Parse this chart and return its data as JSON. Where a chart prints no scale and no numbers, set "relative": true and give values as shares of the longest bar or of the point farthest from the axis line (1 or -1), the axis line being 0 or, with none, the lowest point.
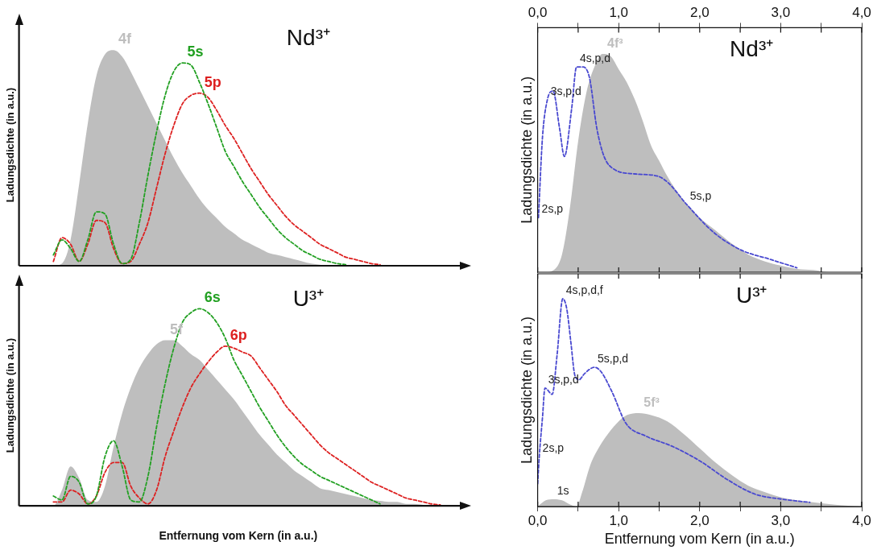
{
  "chart_data": [
    {
      "type": "area",
      "title": "Nd³⁺",
      "ylabel": "Ladungsdichte (in a.u.)",
      "relative": true,
      "categories": [
        null,
        null,
        null,
        null,
        null,
        null,
        null,
        null,
        null,
        null,
        null,
        null,
        null,
        null,
        null,
        null,
        null,
        null,
        null,
        null,
        null,
        null,
        null,
        null,
        null,
        null,
        null,
        null,
        null,
        null,
        null,
        null,
        null,
        null,
        null,
        null,
        null,
        null,
        null,
        null,
        null,
        null,
        null,
        null,
        null,
        null,
        null,
        null,
        null,
        null,
        null,
        null
      ],
      "series": [
        {
          "name": "4f",
          "color": "#bebebe",
          "values": [
            0,
            0,
            0,
            0,
            0,
            0.01,
            0.12,
            0.38,
            0.66,
            0.88,
            0.98,
            1.0,
            0.97,
            0.9,
            0.82,
            0.74,
            0.66,
            0.58,
            0.5,
            0.43,
            0.37,
            0.31,
            0.26,
            0.22,
            0.18,
            0.15,
            0.12,
            0.1,
            0.08,
            0.06,
            0.05,
            0.04,
            0.03,
            0.02,
            0.01,
            0.005,
            0,
            0,
            0,
            0,
            0,
            0,
            0,
            0,
            0,
            0,
            0,
            0,
            0,
            0,
            0,
            0
          ]
        },
        {
          "name": "5s",
          "type": "line",
          "line_style": "dashed",
          "color": "#22a022",
          "values": [
            null,
            null,
            null,
            null,
            0.05,
            0.12,
            0.08,
            0.02,
            0.12,
            0.25,
            0.24,
            0.1,
            0.01,
            0.03,
            0.2,
            0.42,
            0.62,
            0.79,
            0.9,
            0.94,
            0.93,
            0.85,
            0.75,
            0.64,
            0.53,
            0.46,
            0.39,
            0.33,
            0.27,
            0.22,
            0.17,
            0.13,
            0.1,
            0.07,
            0.05,
            0.03,
            0.02,
            0.01,
            0.005,
            null,
            null,
            null,
            null,
            null,
            null,
            null,
            null,
            null,
            null,
            null,
            null,
            null
          ]
        },
        {
          "name": "5p",
          "type": "line",
          "line_style": "dashed",
          "color": "#dd2020",
          "values": [
            null,
            null,
            null,
            null,
            0.02,
            0.13,
            0.1,
            0.02,
            0.1,
            0.21,
            0.2,
            0.08,
            0.01,
            0.02,
            0.1,
            0.2,
            0.36,
            0.52,
            0.65,
            0.75,
            0.79,
            0.8,
            0.78,
            0.72,
            0.65,
            0.59,
            0.52,
            0.45,
            0.39,
            0.33,
            0.28,
            0.23,
            0.19,
            0.16,
            0.13,
            0.1,
            0.08,
            0.06,
            0.04,
            0.03,
            0.02,
            0.01,
            0.005,
            null,
            null,
            null,
            null,
            null,
            null,
            null,
            null,
            null
          ]
        }
      ]
    },
    {
      "type": "area",
      "title": "U³⁺",
      "xlabel": "Entfernung vom Kern (in a.u.)",
      "ylabel": "Ladungsdichte (in a.u.)",
      "relative": true,
      "categories": [
        null,
        null,
        null,
        null,
        null,
        null,
        null,
        null,
        null,
        null,
        null,
        null,
        null,
        null,
        null,
        null,
        null,
        null,
        null,
        null,
        null,
        null,
        null,
        null,
        null,
        null,
        null,
        null,
        null,
        null,
        null,
        null,
        null,
        null,
        null,
        null,
        null,
        null,
        null,
        null,
        null,
        null,
        null,
        null,
        null,
        null,
        null,
        null,
        null,
        null,
        null,
        null
      ],
      "series": [
        {
          "name": "5f",
          "color": "#bebebe",
          "values": [
            0,
            0,
            0,
            0,
            0,
            0.08,
            0.2,
            0.14,
            0.03,
            0.02,
            0.1,
            0.3,
            0.47,
            0.6,
            0.7,
            0.77,
            0.82,
            0.84,
            0.84,
            0.81,
            0.77,
            0.74,
            0.69,
            0.64,
            0.59,
            0.54,
            0.48,
            0.42,
            0.36,
            0.31,
            0.26,
            0.22,
            0.18,
            0.15,
            0.12,
            0.09,
            0.08,
            0.07,
            0.06,
            0.05,
            0.04,
            0.03,
            0.025,
            0.02,
            0.02,
            0.01,
            0.01,
            0.005,
            0,
            0,
            0,
            0
          ]
        },
        {
          "name": "6s",
          "type": "line",
          "line_style": "dashed",
          "color": "#22a022",
          "values": [
            null,
            null,
            null,
            null,
            0.05,
            0.03,
            0.15,
            0.12,
            0.01,
            0.05,
            0.25,
            0.33,
            0.2,
            0.03,
            0.02,
            0.15,
            0.4,
            0.62,
            0.8,
            0.93,
            0.98,
            1.0,
            0.98,
            0.93,
            0.85,
            0.74,
            0.66,
            0.58,
            0.5,
            0.43,
            0.36,
            0.3,
            0.25,
            0.21,
            0.18,
            0.15,
            0.13,
            0.11,
            0.09,
            0.07,
            0.05,
            0.03,
            0.01,
            null,
            null,
            null,
            null,
            null,
            null,
            null,
            null,
            null
          ]
        },
        {
          "name": "6p",
          "type": "line",
          "line_style": "dashed",
          "color": "#dd2020",
          "values": [
            null,
            null,
            null,
            null,
            0.02,
            0.02,
            0.08,
            0.06,
            0.01,
            0.05,
            0.17,
            0.22,
            0.22,
            0.1,
            0.04,
            0.01,
            0.08,
            0.25,
            0.38,
            0.5,
            0.6,
            0.67,
            0.73,
            0.78,
            0.81,
            0.8,
            0.78,
            0.76,
            0.7,
            0.64,
            0.58,
            0.51,
            0.46,
            0.41,
            0.36,
            0.31,
            0.27,
            0.24,
            0.21,
            0.18,
            0.15,
            0.12,
            0.1,
            0.08,
            0.06,
            0.04,
            0.03,
            0.02,
            0.01,
            0.005,
            null,
            null
          ]
        }
      ]
    },
    {
      "type": "area",
      "title": "Nd³⁺",
      "ylabel": "Ladungsdichte (in a.u.)",
      "relative": true,
      "xlim": [
        0,
        4
      ],
      "xticks": [
        {
          "value": 0,
          "label": "0,0"
        },
        {
          "value": 0.5,
          "label": null
        },
        {
          "value": 1,
          "label": "1,0"
        },
        {
          "value": 1.5,
          "label": null
        },
        {
          "value": 2,
          "label": "2,0"
        },
        {
          "value": 2.5,
          "label": null
        },
        {
          "value": 3,
          "label": "3,0"
        },
        {
          "value": 3.5,
          "label": null
        },
        {
          "value": 4,
          "label": "4,0"
        }
      ],
      "annotations": [
        {
          "text": "2s,p",
          "x": 0.01,
          "y": 0.25
        },
        {
          "text": "3s,p,d",
          "x": 0.12,
          "y": 0.79
        },
        {
          "text": "4s,p,d",
          "x": 0.48,
          "y": 0.94
        },
        {
          "text": "5s,p",
          "x": 1.84,
          "y": 0.31
        }
      ],
      "series": [
        {
          "name": "4f³",
          "color": "#bebebe",
          "x": [
            0,
            0.1,
            0.2,
            0.3,
            0.4,
            0.5,
            0.6,
            0.7,
            0.8,
            0.9,
            1.0,
            1.1,
            1.2,
            1.3,
            1.4,
            1.5,
            1.6,
            1.7,
            1.8,
            1.9,
            2.0,
            2.2,
            2.4,
            2.6,
            2.8,
            3.0,
            3.2,
            3.4,
            3.6,
            4.0
          ],
          "values": [
            0,
            0,
            0.01,
            0.08,
            0.3,
            0.6,
            0.82,
            0.94,
            1.0,
            0.99,
            0.93,
            0.87,
            0.79,
            0.69,
            0.58,
            0.51,
            0.44,
            0.38,
            0.33,
            0.29,
            0.25,
            0.19,
            0.13,
            0.08,
            0.05,
            0.03,
            0.015,
            0.01,
            0,
            0
          ]
        },
        {
          "type": "line",
          "line_style": "dashed",
          "color": "#4848d0",
          "x": [
            0.01,
            0.06,
            0.12,
            0.19,
            0.27,
            0.33,
            0.42,
            0.48,
            0.56,
            0.64,
            0.73,
            0.82,
            0.95,
            1.2,
            1.48,
            1.61,
            1.84,
            2.18,
            2.52,
            2.86,
            3.2
          ],
          "values": [
            0.25,
            0.62,
            0.79,
            0.83,
            0.66,
            0.53,
            0.75,
            0.94,
            0.94,
            0.89,
            0.66,
            0.53,
            0.47,
            0.45,
            0.44,
            0.41,
            0.31,
            0.18,
            0.1,
            0.06,
            0.02
          ]
        }
      ]
    },
    {
      "type": "area",
      "title": "U³⁺",
      "xlabel": "Entfernung vom Kern (in a.u.)",
      "ylabel": "Ladungsdichte (in a.u.)",
      "relative": true,
      "xlim": [
        0,
        4
      ],
      "xticks": [
        {
          "value": 0,
          "label": "0,0"
        },
        {
          "value": 0.5,
          "label": null
        },
        {
          "value": 1,
          "label": "1,0"
        },
        {
          "value": 1.5,
          "label": null
        },
        {
          "value": 2,
          "label": "2,0"
        },
        {
          "value": 2.5,
          "label": null
        },
        {
          "value": 3,
          "label": "3,0"
        },
        {
          "value": 3.5,
          "label": null
        },
        {
          "value": 4,
          "label": "4,0"
        }
      ],
      "annotations": [
        {
          "text": "1s",
          "x": 0.2,
          "y": 0.035
        },
        {
          "text": "2s,p",
          "x": 0.02,
          "y": 0.24
        },
        {
          "text": "3s,p,d",
          "x": 0.09,
          "y": 0.57
        },
        {
          "text": "4s,p,d,f",
          "x": 0.31,
          "y": 1.0
        },
        {
          "text": "5s,p,d",
          "x": 0.7,
          "y": 0.67
        }
      ],
      "series": [
        {
          "name": "5f³",
          "color": "#bebebe",
          "x": [
            0,
            0.1,
            0.2,
            0.3,
            0.4,
            0.48,
            0.55,
            0.65,
            0.75,
            0.85,
            1.0,
            1.1,
            1.25,
            1.4,
            1.6,
            1.8,
            2.0,
            2.2,
            2.4,
            2.6,
            2.8,
            3.0,
            3.2,
            3.4,
            3.6,
            3.8,
            4.0
          ],
          "values": [
            0,
            0.03,
            0.035,
            0.03,
            0.01,
            0,
            0.07,
            0.2,
            0.28,
            0.34,
            0.41,
            0.44,
            0.45,
            0.44,
            0.41,
            0.35,
            0.28,
            0.21,
            0.15,
            0.1,
            0.07,
            0.045,
            0.03,
            0.02,
            0.012,
            0.005,
            0
          ]
        },
        {
          "type": "line",
          "line_style": "dashed",
          "color": "#4848d0",
          "x": [
            0,
            0.02,
            0.06,
            0.09,
            0.18,
            0.24,
            0.31,
            0.36,
            0.41,
            0.46,
            0.51,
            0.58,
            0.7,
            0.78,
            0.92,
            1.09,
            1.33,
            1.66,
            2.0,
            2.34,
            2.68,
            3.02,
            3.36
          ],
          "values": [
            0.11,
            0.24,
            0.43,
            0.57,
            0.54,
            0.73,
            1.0,
            0.95,
            0.79,
            0.63,
            0.61,
            0.64,
            0.67,
            0.65,
            0.55,
            0.4,
            0.34,
            0.29,
            0.22,
            0.13,
            0.06,
            0.035,
            0.02
          ]
        }
      ]
    }
  ]
}
